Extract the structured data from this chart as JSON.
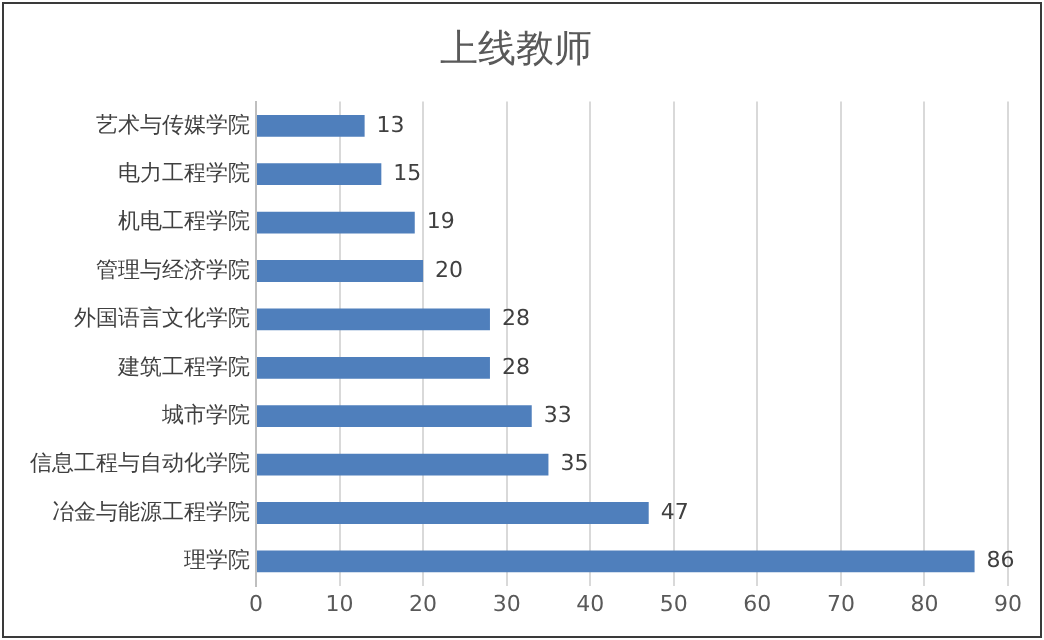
{
  "chart_data": {
    "type": "bar",
    "orientation": "horizontal",
    "title": "上线教师",
    "categories": [
      "艺术与传媒学院",
      "电力工程学院",
      "机电工程学院",
      "管理与经济学院",
      "外国语言文化学院",
      "建筑工程学院",
      "城市学院",
      "信息工程与自动化学院",
      "冶金与能源工程学院",
      "理学院"
    ],
    "values": [
      13,
      15,
      19,
      20,
      28,
      28,
      33,
      35,
      47,
      86
    ],
    "color": "#4f7fbc",
    "xlim": [
      0,
      90
    ],
    "xticks": [
      0,
      10,
      20,
      30,
      40,
      50,
      60,
      70,
      80,
      90
    ],
    "grid": "x",
    "data_labels": true,
    "legend": false
  }
}
